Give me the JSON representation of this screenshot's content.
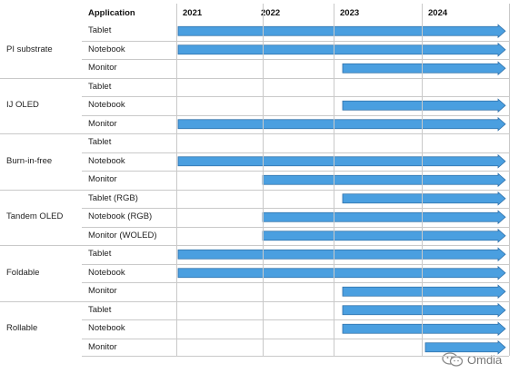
{
  "header": {
    "application": "Application",
    "years": [
      "2021",
      "2022",
      "2023",
      "2024"
    ]
  },
  "groups": [
    {
      "name": "PI substrate",
      "rows": [
        {
          "app": "Tablet",
          "start": 2021
        },
        {
          "app": "Notebook",
          "start": 2021
        },
        {
          "app": "Monitor",
          "start": 2023
        }
      ]
    },
    {
      "name": "IJ OLED",
      "rows": [
        {
          "app": "Tablet",
          "start": null
        },
        {
          "app": "Notebook",
          "start": 2023
        },
        {
          "app": "Monitor",
          "start": 2021
        }
      ]
    },
    {
      "name": "Burn-in-free",
      "rows": [
        {
          "app": "Tablet",
          "start": null
        },
        {
          "app": "Notebook",
          "start": 2021
        },
        {
          "app": "Monitor",
          "start": 2022
        }
      ]
    },
    {
      "name": "Tandem OLED",
      "rows": [
        {
          "app": "Tablet (RGB)",
          "start": 2023
        },
        {
          "app": "Notebook (RGB)",
          "start": 2022
        },
        {
          "app": "Monitor (WOLED)",
          "start": 2022
        }
      ]
    },
    {
      "name": "Foldable",
      "rows": [
        {
          "app": "Tablet",
          "start": 2021
        },
        {
          "app": "Notebook",
          "start": 2021
        },
        {
          "app": "Monitor",
          "start": 2023
        }
      ]
    },
    {
      "name": "Rollable",
      "rows": [
        {
          "app": "Tablet",
          "start": 2023
        },
        {
          "app": "Notebook",
          "start": 2023
        },
        {
          "app": "Monitor",
          "start": 2024
        }
      ]
    }
  ],
  "colors": {
    "arrow_fill": "#4a9fe0",
    "arrow_stroke": "#2f6fa8",
    "grid": "#c9c9c9"
  },
  "watermark": {
    "icon": "wechat-icon",
    "text": "Omdia"
  }
}
